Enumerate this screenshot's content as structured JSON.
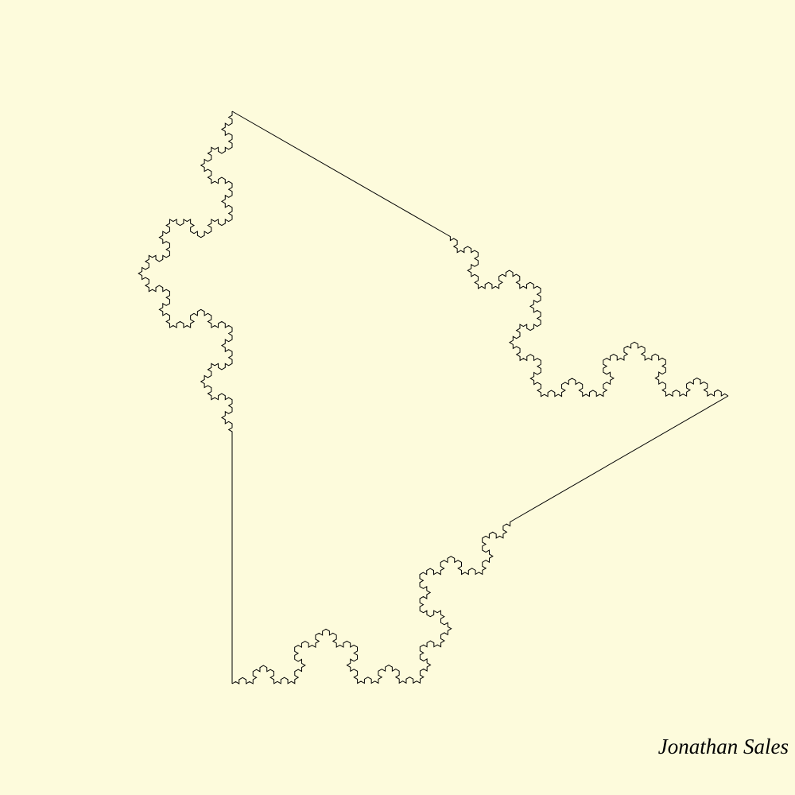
{
  "canvas": {
    "background_color": "#fdfbdc",
    "stroke_color": "#000000"
  },
  "figure": {
    "description_type": "koch-curve-fractal-outline",
    "koch_depth": 4
  },
  "signature": {
    "text": "Jonathan Sales"
  }
}
